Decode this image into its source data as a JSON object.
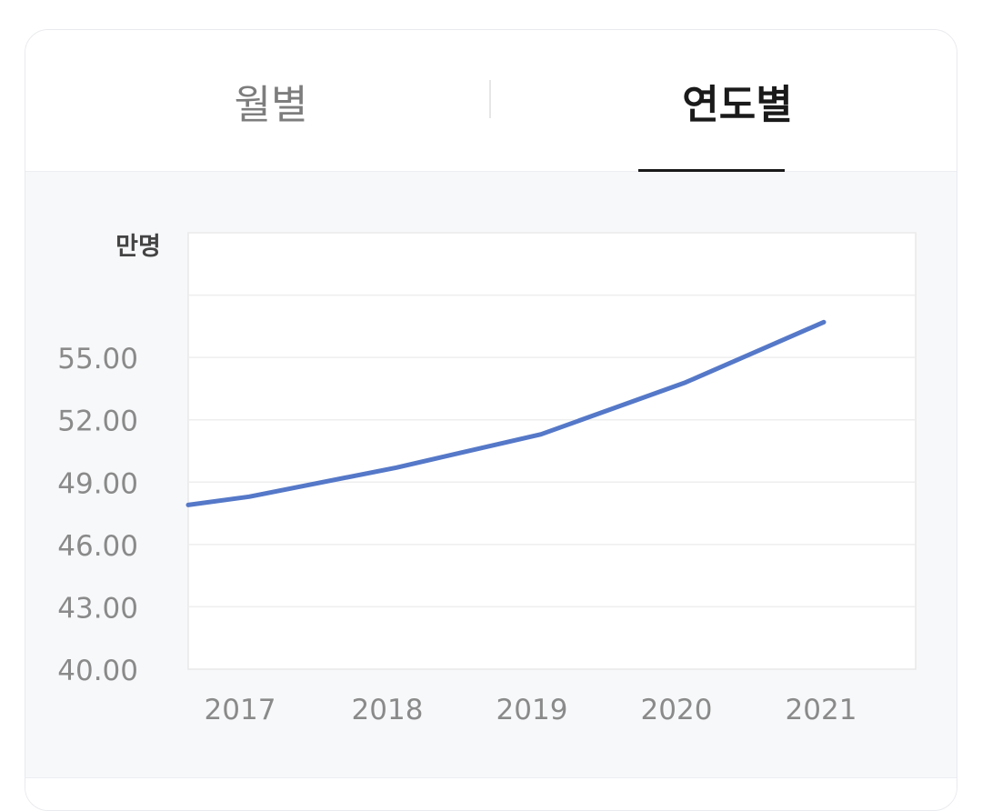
{
  "tabs": [
    {
      "label": "월별",
      "selected": false
    },
    {
      "label": "연도별",
      "selected": true
    }
  ],
  "chart_data": {
    "type": "line",
    "unit_label": "만명",
    "x": [
      "2017",
      "2018",
      "2019",
      "2020",
      "2021"
    ],
    "x_start_value": 47.9,
    "series": [
      {
        "values": [
          48.3,
          49.7,
          51.3,
          53.8,
          56.7
        ],
        "color": "#5578c8"
      }
    ],
    "yticks": [
      "40.00",
      "43.00",
      "46.00",
      "49.00",
      "52.00",
      "55.00"
    ],
    "ylim": [
      40,
      61
    ],
    "grid": true,
    "colors": {
      "line": "#5578c8",
      "grid": "#eeeeee",
      "plot_bg": "#ffffff"
    }
  }
}
